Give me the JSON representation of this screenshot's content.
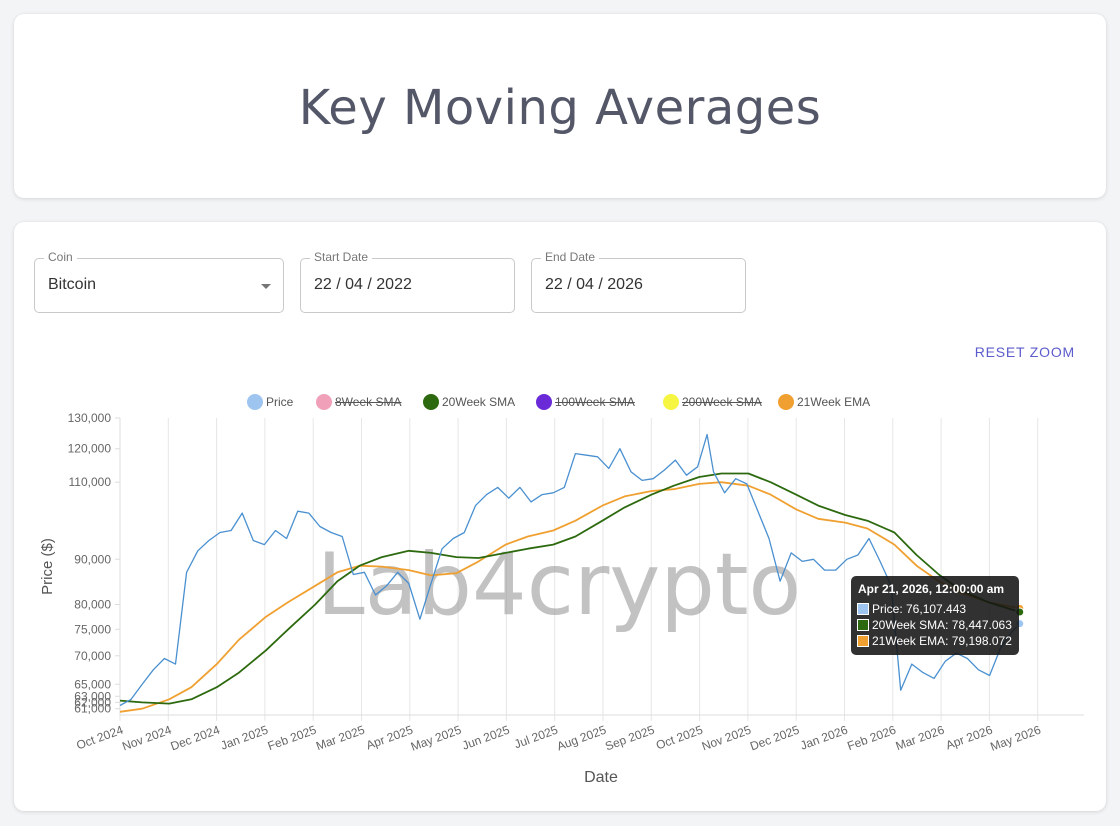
{
  "header": {
    "title": "Key Moving Averages"
  },
  "controls": {
    "coin": {
      "label": "Coin",
      "value": "Bitcoin"
    },
    "start_date": {
      "label": "Start Date",
      "value": "22 / 04 / 2022"
    },
    "end_date": {
      "label": "End Date",
      "value": "22 / 04 / 2026"
    },
    "reset_zoom": "RESET ZOOM"
  },
  "watermark": "Lab4crypto",
  "tooltip": {
    "title": "Apr 21, 2026, 12:00:00 am",
    "rows": [
      {
        "text": "Price: 76,107.443",
        "color": "#9ec5f0"
      },
      {
        "text": "20Week SMA: 78,447.063",
        "color": "#2d6a0f"
      },
      {
        "text": "21Week EMA: 79,198.072",
        "color": "#f0a030"
      }
    ]
  },
  "chart_data": {
    "type": "line",
    "xlabel": "Date",
    "ylabel": "Price ($)",
    "x_ticks": [
      "Oct 2024",
      "Nov 2024",
      "Dec 2024",
      "Jan 2025",
      "Feb 2025",
      "Mar 2025",
      "Apr 2025",
      "May 2025",
      "Jun 2025",
      "Jul 2025",
      "Aug 2025",
      "Sep 2025",
      "Oct 2025",
      "Nov 2025",
      "Dec 2025",
      "Jan 2026",
      "Feb 2026",
      "Mar 2026",
      "Apr 2026",
      "May 2026"
    ],
    "y_ticks": [
      61000,
      62000,
      63000,
      65000,
      70000,
      75000,
      80000,
      90000,
      110000,
      120000,
      130000
    ],
    "y_tick_labels": [
      "61,000",
      "62,000",
      "63,000",
      "65,000",
      "70,000",
      "75,000",
      "80,000",
      "90,000",
      "110,000",
      "120,000",
      "130,000"
    ],
    "ylim": [
      60000,
      130000
    ],
    "y_scale": "log",
    "legend_position": "top",
    "grid": true,
    "series": [
      {
        "name": "Price",
        "color": "#9ec5f0",
        "line_color": "#4a90d0",
        "hidden": false,
        "points": [
          [
            "2024-10-01",
            61500
          ],
          [
            "2024-10-08",
            62500
          ],
          [
            "2024-10-15",
            65000
          ],
          [
            "2024-10-22",
            67500
          ],
          [
            "2024-10-29",
            69500
          ],
          [
            "2024-11-05",
            68500
          ],
          [
            "2024-11-12",
            87000
          ],
          [
            "2024-11-19",
            92000
          ],
          [
            "2024-11-26",
            94500
          ],
          [
            "2024-12-03",
            96500
          ],
          [
            "2024-12-10",
            97000
          ],
          [
            "2024-12-17",
            101500
          ],
          [
            "2024-12-24",
            94500
          ],
          [
            "2024-12-31",
            93500
          ],
          [
            "2025-01-07",
            97000
          ],
          [
            "2025-01-14",
            95000
          ],
          [
            "2025-01-21",
            102000
          ],
          [
            "2025-01-28",
            101500
          ],
          [
            "2025-02-04",
            98000
          ],
          [
            "2025-02-11",
            96500
          ],
          [
            "2025-02-18",
            95500
          ],
          [
            "2025-02-25",
            86500
          ],
          [
            "2025-03-04",
            87000
          ],
          [
            "2025-03-11",
            82000
          ],
          [
            "2025-03-18",
            84000
          ],
          [
            "2025-03-25",
            87000
          ],
          [
            "2025-04-01",
            84500
          ],
          [
            "2025-04-08",
            77000
          ],
          [
            "2025-04-15",
            84500
          ],
          [
            "2025-04-22",
            92500
          ],
          [
            "2025-04-29",
            95000
          ],
          [
            "2025-05-06",
            96500
          ],
          [
            "2025-05-13",
            103500
          ],
          [
            "2025-05-20",
            106500
          ],
          [
            "2025-05-27",
            108500
          ],
          [
            "2025-06-03",
            105500
          ],
          [
            "2025-06-10",
            108500
          ],
          [
            "2025-06-17",
            104500
          ],
          [
            "2025-06-24",
            106500
          ],
          [
            "2025-07-01",
            107000
          ],
          [
            "2025-07-08",
            108500
          ],
          [
            "2025-07-15",
            118500
          ],
          [
            "2025-07-22",
            118000
          ],
          [
            "2025-07-29",
            117500
          ],
          [
            "2025-08-05",
            114000
          ],
          [
            "2025-08-12",
            120000
          ],
          [
            "2025-08-19",
            113000
          ],
          [
            "2025-08-26",
            110500
          ],
          [
            "2025-09-02",
            111000
          ],
          [
            "2025-09-09",
            113500
          ],
          [
            "2025-09-16",
            116500
          ],
          [
            "2025-09-23",
            112000
          ],
          [
            "2025-09-30",
            114500
          ],
          [
            "2025-10-06",
            124500
          ],
          [
            "2025-10-10",
            113000
          ],
          [
            "2025-10-17",
            107000
          ],
          [
            "2025-10-24",
            111000
          ],
          [
            "2025-10-31",
            109500
          ],
          [
            "2025-11-07",
            102000
          ],
          [
            "2025-11-14",
            95000
          ],
          [
            "2025-11-21",
            85000
          ],
          [
            "2025-11-28",
            91500
          ],
          [
            "2025-12-05",
            89500
          ],
          [
            "2025-12-12",
            90000
          ],
          [
            "2025-12-19",
            87500
          ],
          [
            "2025-12-26",
            87500
          ],
          [
            "2026-01-02",
            90000
          ],
          [
            "2026-01-09",
            91000
          ],
          [
            "2026-01-16",
            95000
          ],
          [
            "2026-01-23",
            89500
          ],
          [
            "2026-01-30",
            84000
          ],
          [
            "2026-02-05",
            64000
          ],
          [
            "2026-02-12",
            68500
          ],
          [
            "2026-02-19",
            67000
          ],
          [
            "2026-02-26",
            66000
          ],
          [
            "2026-03-05",
            69000
          ],
          [
            "2026-03-12",
            70500
          ],
          [
            "2026-03-19",
            69500
          ],
          [
            "2026-03-26",
            67500
          ],
          [
            "2026-04-02",
            66500
          ],
          [
            "2026-04-09",
            71500
          ],
          [
            "2026-04-16",
            74500
          ],
          [
            "2026-04-21",
            76107
          ]
        ]
      },
      {
        "name": "8Week SMA",
        "color": "#f0a0b8",
        "hidden": true,
        "points": []
      },
      {
        "name": "20Week SMA",
        "color": "#2d6a0f",
        "hidden": false,
        "points": [
          [
            "2024-10-01",
            62300
          ],
          [
            "2024-10-15",
            62000
          ],
          [
            "2024-11-01",
            61800
          ],
          [
            "2024-11-15",
            62500
          ],
          [
            "2024-12-01",
            64500
          ],
          [
            "2024-12-15",
            67000
          ],
          [
            "2025-01-01",
            71000
          ],
          [
            "2025-01-15",
            75000
          ],
          [
            "2025-02-01",
            80000
          ],
          [
            "2025-02-15",
            85000
          ],
          [
            "2025-03-01",
            88500
          ],
          [
            "2025-03-15",
            90500
          ],
          [
            "2025-04-01",
            92000
          ],
          [
            "2025-04-15",
            91500
          ],
          [
            "2025-05-01",
            90500
          ],
          [
            "2025-05-15",
            90300
          ],
          [
            "2025-06-01",
            91500
          ],
          [
            "2025-06-15",
            92500
          ],
          [
            "2025-07-01",
            93500
          ],
          [
            "2025-07-15",
            95500
          ],
          [
            "2025-08-01",
            99500
          ],
          [
            "2025-08-15",
            103000
          ],
          [
            "2025-09-01",
            106500
          ],
          [
            "2025-09-15",
            109000
          ],
          [
            "2025-10-01",
            111500
          ],
          [
            "2025-10-15",
            112500
          ],
          [
            "2025-11-01",
            112500
          ],
          [
            "2025-11-15",
            110000
          ],
          [
            "2025-12-01",
            106500
          ],
          [
            "2025-12-15",
            103500
          ],
          [
            "2026-01-01",
            101000
          ],
          [
            "2026-01-15",
            99500
          ],
          [
            "2026-02-01",
            96500
          ],
          [
            "2026-02-15",
            91000
          ],
          [
            "2026-03-01",
            86500
          ],
          [
            "2026-03-15",
            83000
          ],
          [
            "2026-04-01",
            80500
          ],
          [
            "2026-04-21",
            78447
          ]
        ]
      },
      {
        "name": "100Week SMA",
        "color": "#6a2ad8",
        "hidden": true,
        "points": []
      },
      {
        "name": "200Week SMA",
        "color": "#f5f542",
        "hidden": true,
        "points": []
      },
      {
        "name": "21Week EMA",
        "color": "#f0a030",
        "hidden": false,
        "points": [
          [
            "2024-10-01",
            60500
          ],
          [
            "2024-10-15",
            61000
          ],
          [
            "2024-11-01",
            62500
          ],
          [
            "2024-11-15",
            64500
          ],
          [
            "2024-12-01",
            68500
          ],
          [
            "2024-12-15",
            73000
          ],
          [
            "2025-01-01",
            77500
          ],
          [
            "2025-01-15",
            80500
          ],
          [
            "2025-02-01",
            84000
          ],
          [
            "2025-02-15",
            87000
          ],
          [
            "2025-03-01",
            88500
          ],
          [
            "2025-03-15",
            88300
          ],
          [
            "2025-04-01",
            87500
          ],
          [
            "2025-04-15",
            86300
          ],
          [
            "2025-05-01",
            86800
          ],
          [
            "2025-05-15",
            89500
          ],
          [
            "2025-06-01",
            93500
          ],
          [
            "2025-06-15",
            95500
          ],
          [
            "2025-07-01",
            97000
          ],
          [
            "2025-07-15",
            99500
          ],
          [
            "2025-08-01",
            103500
          ],
          [
            "2025-08-15",
            106000
          ],
          [
            "2025-09-01",
            107500
          ],
          [
            "2025-09-15",
            108000
          ],
          [
            "2025-10-01",
            109500
          ],
          [
            "2025-10-15",
            110000
          ],
          [
            "2025-11-01",
            109000
          ],
          [
            "2025-11-15",
            106500
          ],
          [
            "2025-12-01",
            102500
          ],
          [
            "2025-12-15",
            100000
          ],
          [
            "2026-01-01",
            99000
          ],
          [
            "2026-01-15",
            97500
          ],
          [
            "2026-02-01",
            93500
          ],
          [
            "2026-02-15",
            88500
          ],
          [
            "2026-03-01",
            85000
          ],
          [
            "2026-03-15",
            82500
          ],
          [
            "2026-04-01",
            80500
          ],
          [
            "2026-04-21",
            79198
          ]
        ]
      }
    ]
  }
}
